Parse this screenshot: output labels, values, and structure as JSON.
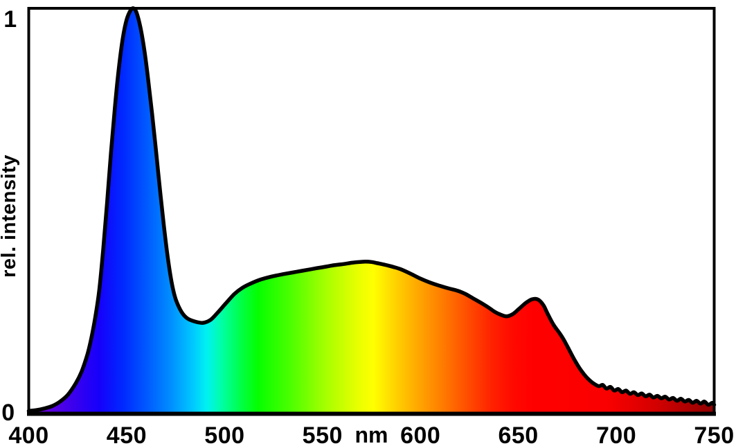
{
  "chart_data": {
    "type": "area",
    "title": "",
    "ylabel": "rel. intensity",
    "x_unit_label": "nm",
    "x_unit_label_wavelength": 575,
    "xlim": [
      400,
      750
    ],
    "ylim": [
      0,
      1
    ],
    "x_ticks": [
      400,
      450,
      500,
      550,
      600,
      650,
      700,
      750
    ],
    "y_tick_labels": [
      "1",
      "0"
    ],
    "grid": false,
    "legend": "none",
    "description": "Relative spectral intensity of a white light source: narrow blue peak near 453 nm, broad phosphor hump peaking near 570 nm, secondary red bump near 658 nm, noisy decaying tail to 750 nm. Area under curve filled with visible-spectrum colors by wavelength.",
    "curve_color": "#000000",
    "frame_color": "#000000",
    "background_color": "#ffffff",
    "points": [
      [
        400,
        0.008
      ],
      [
        404,
        0.01
      ],
      [
        408,
        0.014
      ],
      [
        412,
        0.02
      ],
      [
        416,
        0.031
      ],
      [
        420,
        0.048
      ],
      [
        424,
        0.076
      ],
      [
        427,
        0.105
      ],
      [
        430,
        0.148
      ],
      [
        432,
        0.188
      ],
      [
        434,
        0.24
      ],
      [
        436,
        0.305
      ],
      [
        438,
        0.405
      ],
      [
        440,
        0.52
      ],
      [
        442,
        0.645
      ],
      [
        444,
        0.757
      ],
      [
        446,
        0.852
      ],
      [
        448,
        0.926
      ],
      [
        450,
        0.972
      ],
      [
        452,
        0.995
      ],
      [
        453.5,
        1.0
      ],
      [
        455,
        0.99
      ],
      [
        457,
        0.954
      ],
      [
        459,
        0.898
      ],
      [
        461,
        0.824
      ],
      [
        463,
        0.74
      ],
      [
        465,
        0.648
      ],
      [
        467,
        0.554
      ],
      [
        469,
        0.464
      ],
      [
        471,
        0.386
      ],
      [
        473,
        0.324
      ],
      [
        475,
        0.284
      ],
      [
        478,
        0.252
      ],
      [
        481,
        0.236
      ],
      [
        485,
        0.228
      ],
      [
        489,
        0.225
      ],
      [
        493,
        0.233
      ],
      [
        497,
        0.253
      ],
      [
        501,
        0.275
      ],
      [
        505,
        0.296
      ],
      [
        509,
        0.311
      ],
      [
        513,
        0.321
      ],
      [
        518,
        0.331
      ],
      [
        524,
        0.339
      ],
      [
        530,
        0.345
      ],
      [
        537,
        0.351
      ],
      [
        544,
        0.357
      ],
      [
        550,
        0.362
      ],
      [
        556,
        0.367
      ],
      [
        561,
        0.37
      ],
      [
        565,
        0.373
      ],
      [
        569,
        0.375
      ],
      [
        572,
        0.376
      ],
      [
        575,
        0.375
      ],
      [
        578,
        0.372
      ],
      [
        582,
        0.368
      ],
      [
        586,
        0.363
      ],
      [
        590,
        0.357
      ],
      [
        595,
        0.346
      ],
      [
        600,
        0.334
      ],
      [
        605,
        0.324
      ],
      [
        610,
        0.316
      ],
      [
        615,
        0.309
      ],
      [
        619,
        0.304
      ],
      [
        623,
        0.296
      ],
      [
        627,
        0.285
      ],
      [
        631,
        0.274
      ],
      [
        635,
        0.262
      ],
      [
        638,
        0.252
      ],
      [
        641,
        0.245
      ],
      [
        644,
        0.241
      ],
      [
        647,
        0.246
      ],
      [
        650,
        0.258
      ],
      [
        653,
        0.271
      ],
      [
        655,
        0.278
      ],
      [
        657,
        0.283
      ],
      [
        659,
        0.284
      ],
      [
        661,
        0.279
      ],
      [
        663,
        0.267
      ],
      [
        665,
        0.247
      ],
      [
        668,
        0.22
      ],
      [
        671,
        0.2
      ],
      [
        673,
        0.185
      ],
      [
        676,
        0.158
      ],
      [
        679,
        0.131
      ],
      [
        682,
        0.108
      ],
      [
        685,
        0.09
      ],
      [
        688,
        0.077
      ],
      [
        691,
        0.069
      ],
      [
        693,
        0.072
      ],
      [
        695,
        0.063
      ],
      [
        697,
        0.067
      ],
      [
        699,
        0.058
      ],
      [
        701,
        0.062
      ],
      [
        703,
        0.054
      ],
      [
        705,
        0.058
      ],
      [
        707,
        0.05
      ],
      [
        709,
        0.054
      ],
      [
        711,
        0.047
      ],
      [
        713,
        0.051
      ],
      [
        715,
        0.044
      ],
      [
        717,
        0.048
      ],
      [
        719,
        0.041
      ],
      [
        721,
        0.045
      ],
      [
        723,
        0.039
      ],
      [
        725,
        0.043
      ],
      [
        727,
        0.036
      ],
      [
        729,
        0.04
      ],
      [
        731,
        0.033
      ],
      [
        733,
        0.038
      ],
      [
        735,
        0.031
      ],
      [
        737,
        0.035
      ],
      [
        739,
        0.028
      ],
      [
        741,
        0.033
      ],
      [
        743,
        0.026
      ],
      [
        745,
        0.031
      ],
      [
        747,
        0.023
      ],
      [
        749,
        0.028
      ],
      [
        750,
        0.023
      ]
    ],
    "spectrum_gradient_stops": [
      {
        "wl": 400,
        "color": "#7a00c8"
      },
      {
        "wl": 412,
        "color": "#5a00e0"
      },
      {
        "wl": 424,
        "color": "#3700ef"
      },
      {
        "wl": 436,
        "color": "#1500fb"
      },
      {
        "wl": 448,
        "color": "#0028ff"
      },
      {
        "wl": 460,
        "color": "#0058ff"
      },
      {
        "wl": 472,
        "color": "#008cff"
      },
      {
        "wl": 483,
        "color": "#00c4ff"
      },
      {
        "wl": 491,
        "color": "#00f2f2"
      },
      {
        "wl": 499,
        "color": "#00ffa0"
      },
      {
        "wl": 508,
        "color": "#00ff4a"
      },
      {
        "wl": 517,
        "color": "#05ff00"
      },
      {
        "wl": 535,
        "color": "#52ff00"
      },
      {
        "wl": 552,
        "color": "#a8ff00"
      },
      {
        "wl": 568,
        "color": "#e8ff00"
      },
      {
        "wl": 576,
        "color": "#ffff00"
      },
      {
        "wl": 588,
        "color": "#ffcf00"
      },
      {
        "wl": 600,
        "color": "#ffa300"
      },
      {
        "wl": 612,
        "color": "#ff7900"
      },
      {
        "wl": 624,
        "color": "#ff4d00"
      },
      {
        "wl": 636,
        "color": "#ff2300"
      },
      {
        "wl": 648,
        "color": "#ff0800"
      },
      {
        "wl": 658,
        "color": "#ff0000"
      },
      {
        "wl": 695,
        "color": "#fa0000"
      },
      {
        "wl": 720,
        "color": "#d40000"
      },
      {
        "wl": 750,
        "color": "#8f0000"
      }
    ]
  }
}
